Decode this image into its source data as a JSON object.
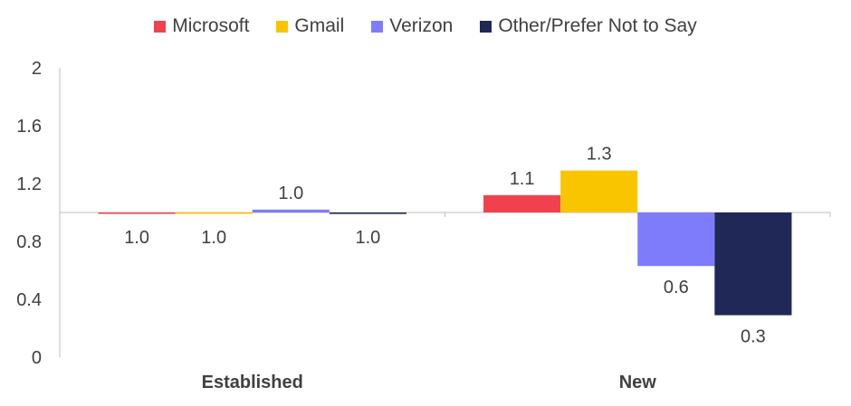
{
  "chart_data": {
    "type": "bar",
    "title": "",
    "xlabel": "",
    "ylabel": "",
    "categories": [
      "Established",
      "New"
    ],
    "baseline": 1.0,
    "ylim": [
      0,
      2
    ],
    "yticks": [
      "0",
      "0.4",
      "0.8",
      "1.2",
      "1.6",
      "2"
    ],
    "legend_position": "top",
    "series": [
      {
        "name": "Microsoft",
        "color": "#F2414E",
        "values": [
          1.0,
          1.12
        ],
        "labels": [
          "1.0",
          "1.1"
        ]
      },
      {
        "name": "Gmail",
        "color": "#F9C500",
        "values": [
          1.0,
          1.29
        ],
        "labels": [
          "1.0",
          "1.3"
        ]
      },
      {
        "name": "Verizon",
        "color": "#7F7CFB",
        "values": [
          1.02,
          0.63
        ],
        "labels": [
          "1.0",
          "0.6"
        ]
      },
      {
        "name": "Other/Prefer Not to Say",
        "color": "#1F2857",
        "values": [
          0.99,
          0.29
        ],
        "labels": [
          "1.0",
          "0.3"
        ]
      }
    ]
  }
}
